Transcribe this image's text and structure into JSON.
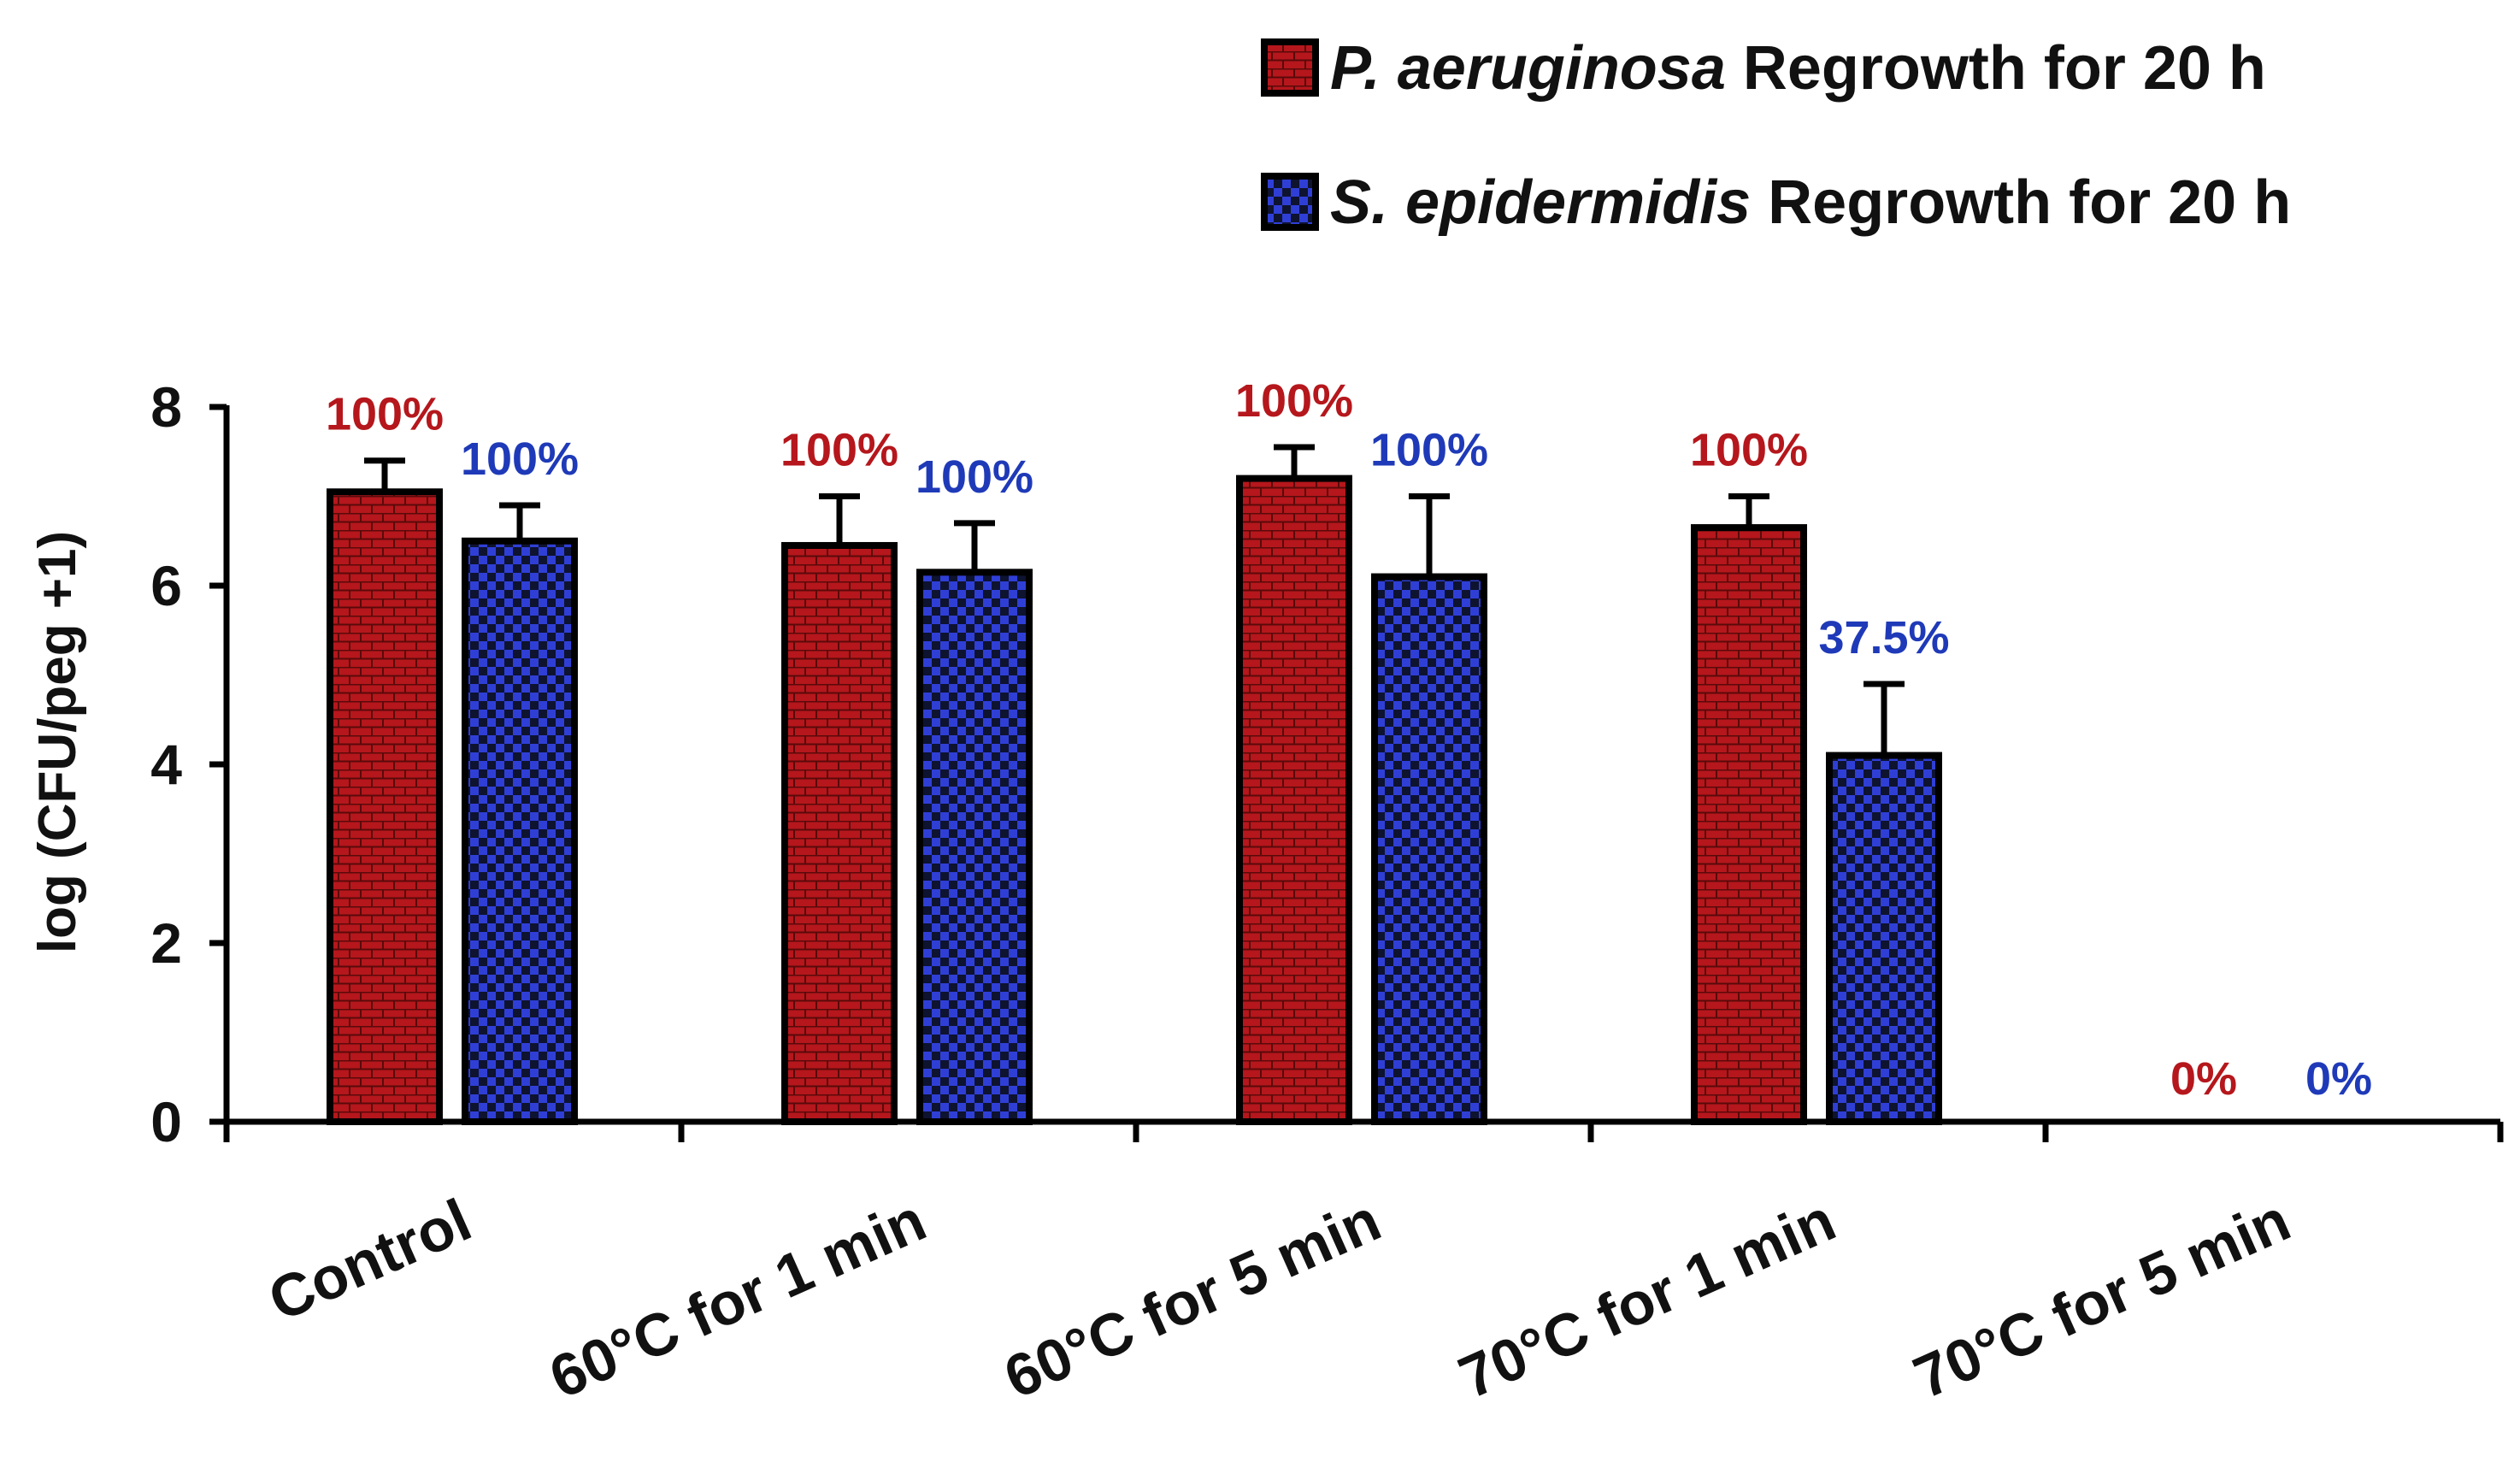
{
  "chart_data": {
    "type": "bar",
    "title": "",
    "xlabel": "",
    "ylabel": "log (CFU/peg +1)",
    "ylim": [
      0,
      8
    ],
    "yticks": [
      "0",
      "2",
      "4",
      "6",
      "8"
    ],
    "categories": [
      "Control",
      "60°C for 1 min",
      "60°C for 5 min",
      "70°C for 1 min",
      "70°C for 5 min"
    ],
    "series": [
      {
        "name_italic": "P. aeruginosa",
        "name_suffix": " Regrowth for 20 h",
        "color": "#b5171c",
        "pattern": "brick",
        "values": [
          7.05,
          6.45,
          7.2,
          6.65,
          0
        ],
        "errors": [
          0.35,
          0.55,
          0.35,
          0.35,
          0
        ],
        "labels": [
          "100%",
          "100%",
          "100%",
          "100%",
          "0%"
        ],
        "label_color": "#b5171c"
      },
      {
        "name_italic": "S. epidermidis",
        "name_suffix": " Regrowth for 20 h",
        "color": "#2f3fd6",
        "pattern": "checker",
        "values": [
          6.5,
          6.15,
          6.1,
          4.1,
          0
        ],
        "errors": [
          0.4,
          0.55,
          0.9,
          0.8,
          0
        ],
        "labels": [
          "100%",
          "100%",
          "100%",
          "37.5%",
          "0%"
        ],
        "label_color": "#1f3ab8"
      }
    ],
    "grid": false,
    "legend": "top-right"
  }
}
